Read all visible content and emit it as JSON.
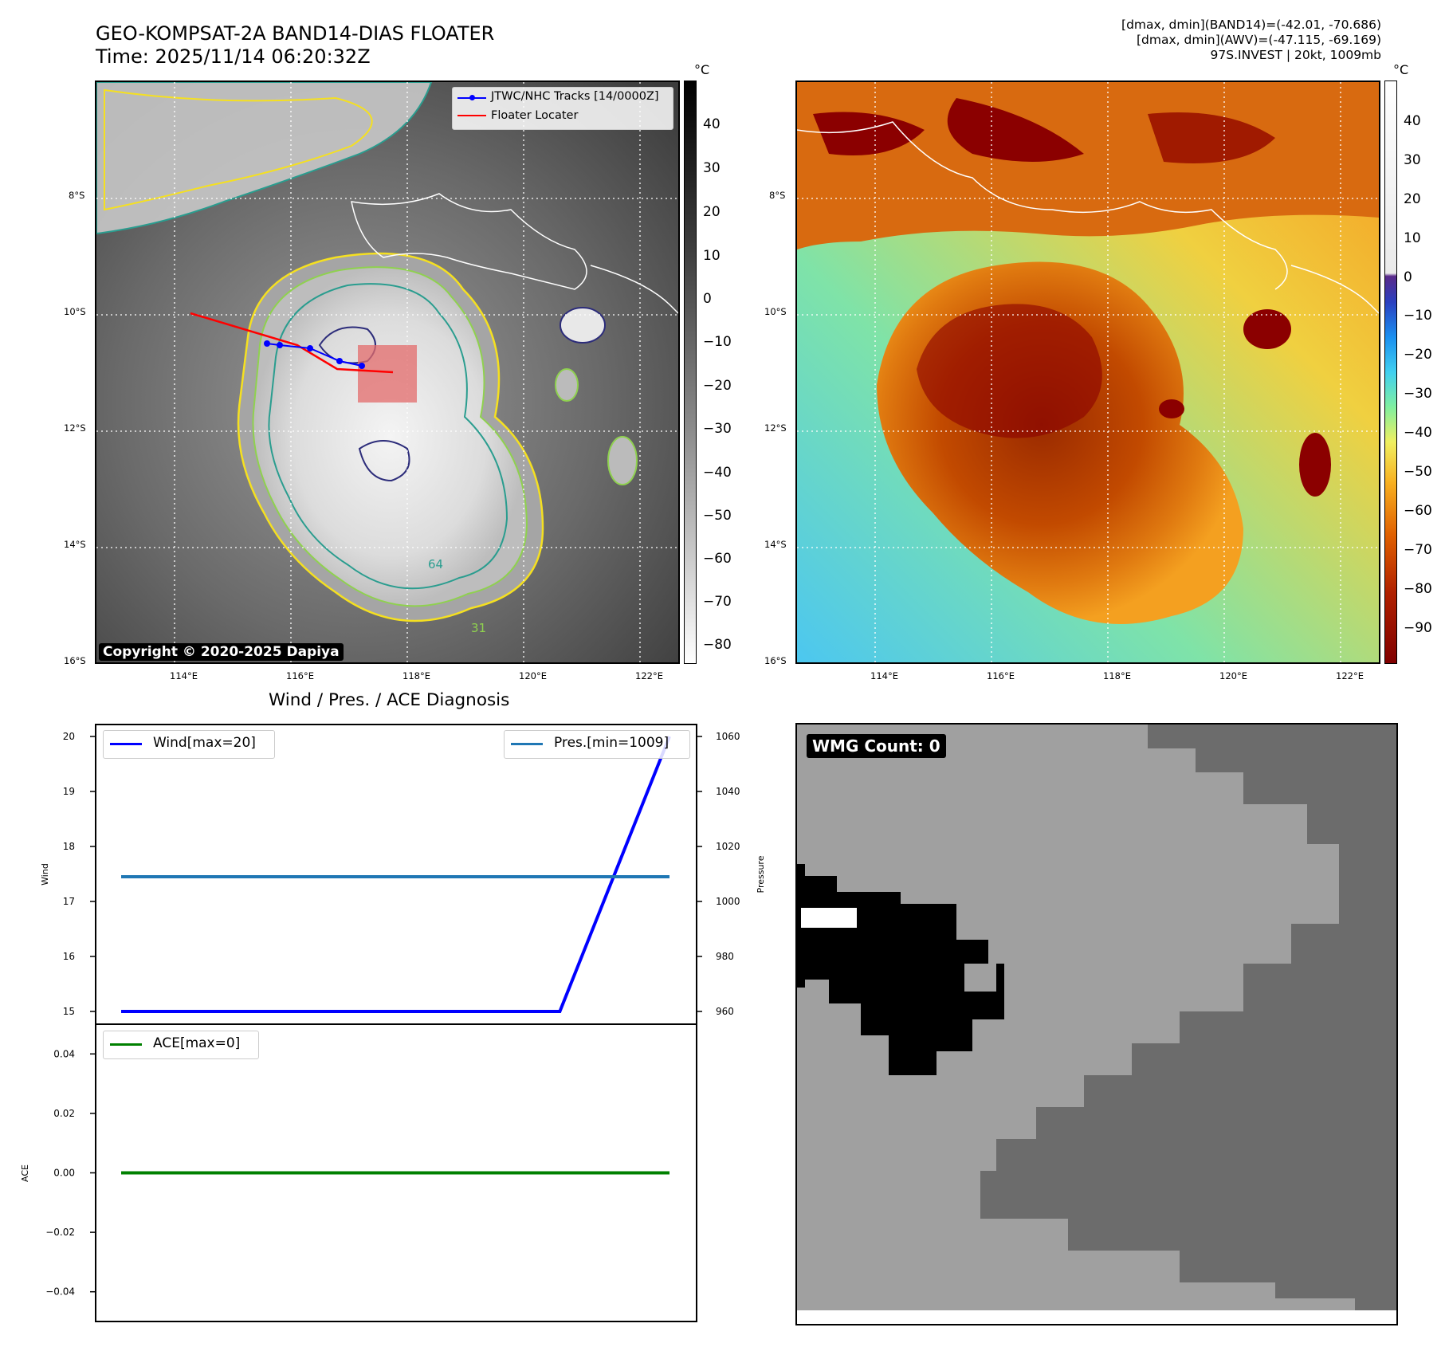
{
  "header": {
    "title_line1": "GEO-KOMPSAT-2A BAND14-DIAS FLOATER",
    "title_line2": "Time: 2025/11/14 06:20:32Z",
    "info_line1": "[dmax, dmin](BAND14)=(-42.01, -70.686)",
    "info_line2": "[dmax, dmin](AWV)=(-47.115, -69.169)",
    "info_line3": "97S.INVEST | 20kt, 1009mb"
  },
  "map": {
    "lon_ticks": [
      "114°E",
      "116°E",
      "118°E",
      "120°E",
      "122°E"
    ],
    "lat_ticks": [
      "8°S",
      "10°S",
      "12°S",
      "14°S",
      "16°S"
    ],
    "legend_track": "JTWC/NHC Tracks [14/0000Z]",
    "legend_locater": "Floater Locater",
    "copyright": "Copyright © 2020-2025 Dapiya",
    "contour_labels": [
      "64",
      "31"
    ]
  },
  "colorbar_left": {
    "unit": "°C",
    "ticks": [
      "40",
      "30",
      "20",
      "10",
      "0",
      "−10",
      "−20",
      "−30",
      "−40",
      "−50",
      "−60",
      "−70",
      "−80"
    ]
  },
  "colorbar_right": {
    "unit": "°C",
    "ticks": [
      "40",
      "30",
      "20",
      "10",
      "0",
      "−10",
      "−20",
      "−30",
      "−40",
      "−50",
      "−60",
      "−70",
      "−80",
      "−90"
    ]
  },
  "diag_title": "Wind / Pres. / ACE Diagnosis",
  "wmg": {
    "label": "WMG Count: 0"
  },
  "chart_data": [
    {
      "type": "line",
      "title": "Wind / Pres. / ACE Diagnosis",
      "ylabel": "Wind",
      "ylabel2": "Pressure",
      "ylim": [
        15,
        20
      ],
      "ylim2": [
        960,
        1060
      ],
      "yticks": [
        "15",
        "16",
        "17",
        "18",
        "19",
        "20"
      ],
      "yticks2": [
        "960",
        "980",
        "1000",
        "1020",
        "1040",
        "1060"
      ],
      "x": [
        0,
        1,
        2,
        3,
        4,
        5
      ],
      "series": [
        {
          "name": "Wind[max=20]",
          "values": [
            15,
            15,
            15,
            15,
            15,
            20
          ],
          "color": "#0000ff",
          "axis": "left"
        },
        {
          "name": "Pres.[min=1009]",
          "values": [
            1009,
            1009,
            1009,
            1009,
            1009,
            1009
          ],
          "color": "#1f77b4",
          "axis": "right"
        }
      ]
    },
    {
      "type": "line",
      "ylabel": "ACE",
      "ylim": [
        -0.05,
        0.05
      ],
      "yticks": [
        "0.04",
        "0.02",
        "0.00",
        "−0.02",
        "−0.04"
      ],
      "x": [
        0,
        1,
        2,
        3,
        4,
        5
      ],
      "series": [
        {
          "name": "ACE[max=0]",
          "values": [
            0,
            0,
            0,
            0,
            0,
            0
          ],
          "color": "#008000"
        }
      ]
    }
  ]
}
